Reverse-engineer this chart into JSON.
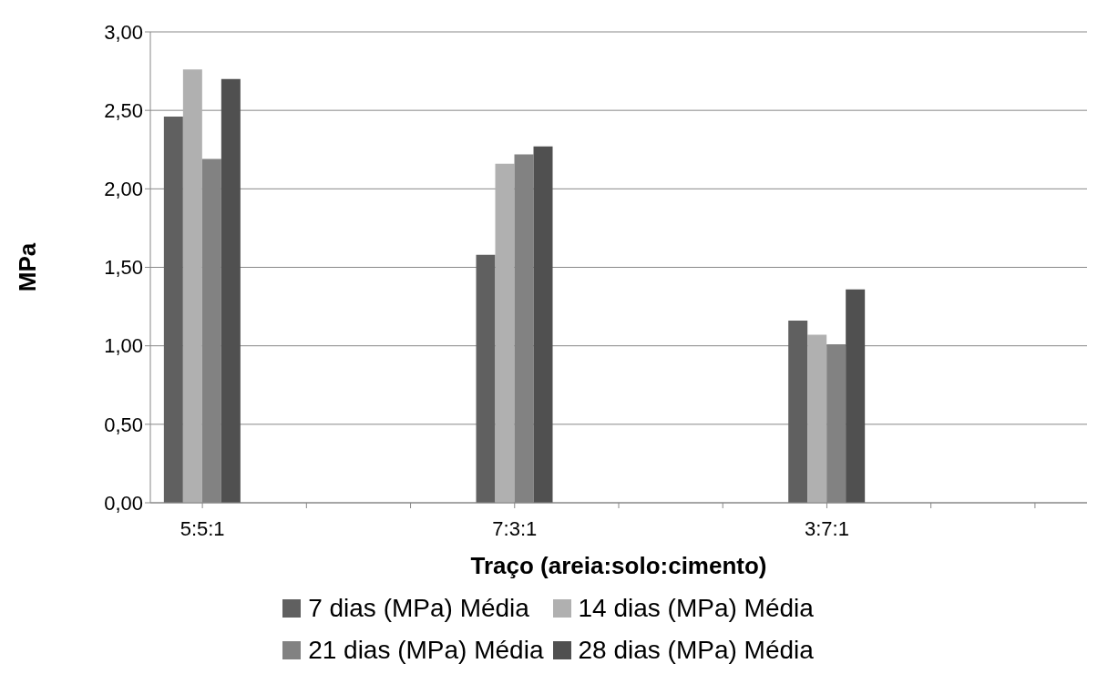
{
  "chart_data": {
    "type": "bar",
    "xlabel": "Traço (areia:solo:cimento)",
    "ylabel": "MPa",
    "categories": [
      "5:5:1",
      null,
      null,
      "7:3:1",
      null,
      null,
      "3:7:1",
      null,
      null
    ],
    "series": [
      {
        "name": "7 dias (MPa) Média",
        "color": "#606060",
        "values": [
          2.46,
          null,
          null,
          1.58,
          null,
          null,
          1.16,
          null,
          null
        ]
      },
      {
        "name": "14 dias (MPa) Média",
        "color": "#b0b0b0",
        "values": [
          2.76,
          null,
          null,
          2.16,
          null,
          null,
          1.07,
          null,
          null
        ]
      },
      {
        "name": "21 dias (MPa) Média",
        "color": "#828282",
        "values": [
          2.19,
          null,
          null,
          2.22,
          null,
          null,
          1.01,
          null,
          null
        ]
      },
      {
        "name": "28 dias (MPa) Média",
        "color": "#505050",
        "values": [
          2.7,
          null,
          null,
          2.27,
          null,
          null,
          1.36,
          null,
          null
        ]
      }
    ],
    "ylim": [
      0,
      3
    ],
    "yticks": [
      {
        "value": 0,
        "label": "0,00"
      },
      {
        "value": 0.5,
        "label": "0,50"
      },
      {
        "value": 1,
        "label": "1,00"
      },
      {
        "value": 1.5,
        "label": "1,50"
      },
      {
        "value": 2,
        "label": "2,00"
      },
      {
        "value": 2.5,
        "label": "2,50"
      },
      {
        "value": 3,
        "label": "3,00"
      }
    ],
    "grid": "y",
    "legend": "bottom"
  }
}
